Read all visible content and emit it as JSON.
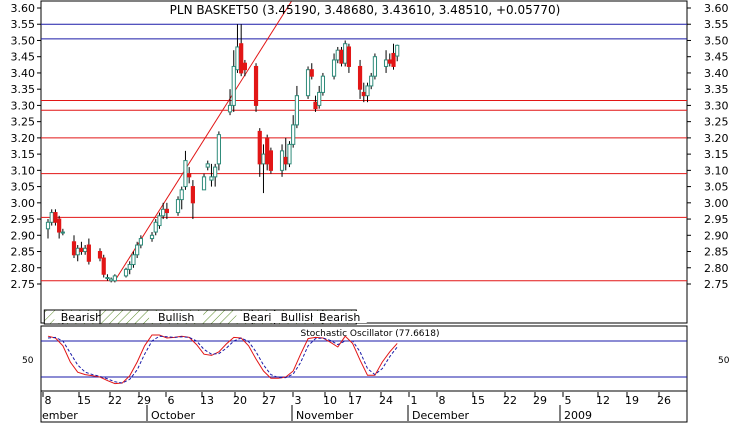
{
  "title": "PLN BASKET50 (3.45190, 3.48680, 3.43610, 3.48510, +0.05770)",
  "colors": {
    "up_candle": "#2e8b7a",
    "down_candle": "#e21616",
    "wick": "#000000",
    "support_lines": "#e21616",
    "resistance_lines": "#1a1aa8",
    "trendline": "#e21616",
    "stoch_k": "#e21616",
    "stoch_d": "#1a1aa8",
    "zone_hatch": "#5a8a2a"
  },
  "chart_data": [
    {
      "type": "candlestick",
      "title": "PLN BASKET50 (3.45190, 3.48680, 3.43610, 3.48510, +0.05770)",
      "ylim": [
        2.7,
        3.62
      ],
      "y_ticks": [
        "3.60",
        "3.55",
        "3.50",
        "3.45",
        "3.40",
        "3.35",
        "3.30",
        "3.25",
        "3.20",
        "3.15",
        "3.10",
        "3.05",
        "3.00",
        "2.95",
        "2.90",
        "2.85",
        "2.80",
        "2.75"
      ],
      "x_tick_labels": [
        "8",
        "15",
        "22",
        "29",
        "6",
        "13",
        "20",
        "27",
        "3",
        "10",
        "17",
        "24",
        "1",
        "8",
        "15",
        "22",
        "29",
        "5",
        "12",
        "19",
        "26"
      ],
      "month_labels": [
        "ember",
        "October",
        "November",
        "December",
        "2009"
      ],
      "horizontal_lines": [
        {
          "value": 3.55,
          "color": "blue"
        },
        {
          "value": 3.505,
          "color": "blue"
        },
        {
          "value": 3.315,
          "color": "red"
        },
        {
          "value": 3.285,
          "color": "red"
        },
        {
          "value": 3.2,
          "color": "red"
        },
        {
          "value": 3.09,
          "color": "red"
        },
        {
          "value": 2.955,
          "color": "red"
        },
        {
          "value": 2.76,
          "color": "red"
        }
      ],
      "trendline": {
        "start": {
          "day": 18,
          "value": 2.76
        },
        "end": {
          "day": 65.5,
          "value": 3.62
        }
      },
      "candles": [
        {
          "day": 0,
          "open": 2.92,
          "high": 2.95,
          "low": 2.89,
          "close": 2.94
        },
        {
          "day": 1,
          "open": 2.94,
          "high": 2.98,
          "low": 2.93,
          "close": 2.97
        },
        {
          "day": 2,
          "open": 2.97,
          "high": 2.98,
          "low": 2.93,
          "close": 2.94
        },
        {
          "day": 3,
          "open": 2.95,
          "high": 2.96,
          "low": 2.89,
          "close": 2.91
        },
        {
          "day": 4,
          "open": 2.91,
          "high": 2.92,
          "low": 2.9,
          "close": 2.91
        },
        {
          "day": 7,
          "open": 2.88,
          "high": 2.9,
          "low": 2.83,
          "close": 2.84
        },
        {
          "day": 8,
          "open": 2.84,
          "high": 2.87,
          "low": 2.82,
          "close": 2.86
        },
        {
          "day": 9,
          "open": 2.86,
          "high": 2.88,
          "low": 2.84,
          "close": 2.85
        },
        {
          "day": 10,
          "open": 2.85,
          "high": 2.87,
          "low": 2.84,
          "close": 2.86
        },
        {
          "day": 11,
          "open": 2.87,
          "high": 2.89,
          "low": 2.81,
          "close": 2.82
        },
        {
          "day": 14,
          "open": 2.85,
          "high": 2.86,
          "low": 2.82,
          "close": 2.83
        },
        {
          "day": 15,
          "open": 2.83,
          "high": 2.84,
          "low": 2.77,
          "close": 2.78
        },
        {
          "day": 16,
          "open": 2.77,
          "high": 2.78,
          "low": 2.76,
          "close": 2.77
        },
        {
          "day": 17,
          "open": 2.76,
          "high": 2.77,
          "low": 2.755,
          "close": 2.765
        },
        {
          "day": 18,
          "open": 2.76,
          "high": 2.78,
          "low": 2.755,
          "close": 2.775
        },
        {
          "day": 21,
          "open": 2.775,
          "high": 2.8,
          "low": 2.77,
          "close": 2.795
        },
        {
          "day": 22,
          "open": 2.795,
          "high": 2.82,
          "low": 2.78,
          "close": 2.81
        },
        {
          "day": 23,
          "open": 2.81,
          "high": 2.85,
          "low": 2.8,
          "close": 2.84
        },
        {
          "day": 24,
          "open": 2.84,
          "high": 2.88,
          "low": 2.83,
          "close": 2.87
        },
        {
          "day": 25,
          "open": 2.87,
          "high": 2.9,
          "low": 2.86,
          "close": 2.89
        },
        {
          "day": 28,
          "open": 2.89,
          "high": 2.91,
          "low": 2.88,
          "close": 2.9
        },
        {
          "day": 29,
          "open": 2.91,
          "high": 2.95,
          "low": 2.9,
          "close": 2.94
        },
        {
          "day": 30,
          "open": 2.93,
          "high": 2.97,
          "low": 2.92,
          "close": 2.96
        },
        {
          "day": 31,
          "open": 2.96,
          "high": 3.0,
          "low": 2.95,
          "close": 2.98
        },
        {
          "day": 32,
          "open": 2.98,
          "high": 3.0,
          "low": 2.95,
          "close": 2.97
        },
        {
          "day": 35,
          "open": 2.97,
          "high": 3.02,
          "low": 2.96,
          "close": 3.01
        },
        {
          "day": 36,
          "open": 3.01,
          "high": 3.05,
          "low": 2.98,
          "close": 3.04
        },
        {
          "day": 37,
          "open": 3.05,
          "high": 3.16,
          "low": 3.04,
          "close": 3.13
        },
        {
          "day": 38,
          "open": 3.09,
          "high": 3.11,
          "low": 3.06,
          "close": 3.08
        },
        {
          "day": 39,
          "open": 3.05,
          "high": 3.07,
          "low": 2.95,
          "close": 3.0
        },
        {
          "day": 42,
          "open": 3.04,
          "high": 3.09,
          "low": 3.04,
          "close": 3.08
        },
        {
          "day": 43,
          "open": 3.11,
          "high": 3.13,
          "low": 3.1,
          "close": 3.12
        },
        {
          "day": 44,
          "open": 3.07,
          "high": 3.12,
          "low": 3.05,
          "close": 3.08
        },
        {
          "day": 45,
          "open": 3.08,
          "high": 3.12,
          "low": 3.05,
          "close": 3.11
        },
        {
          "day": 46,
          "open": 3.12,
          "high": 3.22,
          "low": 3.1,
          "close": 3.21
        },
        {
          "day": 49,
          "open": 3.28,
          "high": 3.35,
          "low": 3.27,
          "close": 3.3
        },
        {
          "day": 50,
          "open": 3.3,
          "high": 3.47,
          "low": 3.28,
          "close": 3.42
        },
        {
          "day": 51,
          "open": 3.41,
          "high": 3.55,
          "low": 3.4,
          "close": 3.48
        },
        {
          "day": 52,
          "open": 3.49,
          "high": 3.55,
          "low": 3.39,
          "close": 3.4
        },
        {
          "day": 53,
          "open": 3.43,
          "high": 3.44,
          "low": 3.39,
          "close": 3.41
        },
        {
          "day": 56,
          "open": 3.42,
          "high": 3.43,
          "low": 3.28,
          "close": 3.3
        },
        {
          "day": 57,
          "open": 3.22,
          "high": 3.23,
          "low": 3.08,
          "close": 3.12
        },
        {
          "day": 58,
          "open": 3.12,
          "high": 3.18,
          "low": 3.03,
          "close": 3.15
        },
        {
          "day": 59,
          "open": 3.2,
          "high": 3.21,
          "low": 3.1,
          "close": 3.12
        },
        {
          "day": 60,
          "open": 3.16,
          "high": 3.17,
          "low": 3.09,
          "close": 3.1
        },
        {
          "day": 63,
          "open": 3.1,
          "high": 3.18,
          "low": 3.08,
          "close": 3.16
        },
        {
          "day": 64,
          "open": 3.14,
          "high": 3.2,
          "low": 3.1,
          "close": 3.12
        },
        {
          "day": 65,
          "open": 3.12,
          "high": 3.19,
          "low": 3.11,
          "close": 3.18
        },
        {
          "day": 66,
          "open": 3.18,
          "high": 3.27,
          "low": 3.17,
          "close": 3.24
        },
        {
          "day": 67,
          "open": 3.24,
          "high": 3.36,
          "low": 3.23,
          "close": 3.33
        },
        {
          "day": 70,
          "open": 3.33,
          "high": 3.42,
          "low": 3.32,
          "close": 3.41
        },
        {
          "day": 71,
          "open": 3.41,
          "high": 3.43,
          "low": 3.38,
          "close": 3.39
        },
        {
          "day": 72,
          "open": 3.31,
          "high": 3.33,
          "low": 3.28,
          "close": 3.29
        },
        {
          "day": 73,
          "open": 3.3,
          "high": 3.36,
          "low": 3.29,
          "close": 3.34
        },
        {
          "day": 74,
          "open": 3.34,
          "high": 3.4,
          "low": 3.33,
          "close": 3.39
        },
        {
          "day": 77,
          "open": 3.39,
          "high": 3.46,
          "low": 3.38,
          "close": 3.44
        },
        {
          "day": 78,
          "open": 3.44,
          "high": 3.48,
          "low": 3.43,
          "close": 3.47
        },
        {
          "day": 79,
          "open": 3.47,
          "high": 3.48,
          "low": 3.42,
          "close": 3.43
        },
        {
          "day": 80,
          "open": 3.43,
          "high": 3.5,
          "low": 3.42,
          "close": 3.49
        },
        {
          "day": 81,
          "open": 3.48,
          "high": 3.49,
          "low": 3.4,
          "close": 3.42
        },
        {
          "day": 84,
          "open": 3.42,
          "high": 3.44,
          "low": 3.32,
          "close": 3.35
        },
        {
          "day": 85,
          "open": 3.34,
          "high": 3.37,
          "low": 3.31,
          "close": 3.33
        },
        {
          "day": 86,
          "open": 3.33,
          "high": 3.37,
          "low": 3.31,
          "close": 3.36
        },
        {
          "day": 87,
          "open": 3.36,
          "high": 3.4,
          "low": 3.35,
          "close": 3.39
        },
        {
          "day": 88,
          "open": 3.39,
          "high": 3.46,
          "low": 3.38,
          "close": 3.45
        },
        {
          "day": 91,
          "open": 3.42,
          "high": 3.47,
          "low": 3.4,
          "close": 3.44
        },
        {
          "day": 92,
          "open": 3.44,
          "high": 3.46,
          "low": 3.42,
          "close": 3.43
        },
        {
          "day": 93,
          "open": 3.46,
          "high": 3.49,
          "low": 3.41,
          "close": 3.42
        },
        {
          "day": 94,
          "open": 3.452,
          "high": 3.487,
          "low": 3.436,
          "close": 3.485
        }
      ],
      "market_zones": [
        {
          "label": "",
          "start_day": -1,
          "end_day": 4
        },
        {
          "label": "Bearish",
          "start_day": 4,
          "end_day": 14
        },
        {
          "label": "Bullish",
          "start_day": 14,
          "end_day": 55
        },
        {
          "label": "Bearish",
          "start_day": 55,
          "end_day": 61
        },
        {
          "label": "Bullish",
          "start_day": 61,
          "end_day": 74
        },
        {
          "label": "Bearish",
          "start_day": 74,
          "end_day": 83
        }
      ]
    },
    {
      "type": "line",
      "title": "Stochastic Oscillator (77.6618)",
      "ylim": [
        0,
        100
      ],
      "y_ticks": [
        "50"
      ],
      "levels": [
        80,
        20
      ],
      "series": [
        {
          "key": "k",
          "x": [
            0,
            2,
            4,
            6,
            8,
            10,
            12,
            14,
            16,
            18,
            20,
            22,
            24,
            26,
            28,
            30,
            32,
            34,
            36,
            38,
            40,
            42,
            44,
            46,
            48,
            50,
            52,
            54,
            56,
            58,
            60,
            62,
            64,
            66,
            68,
            70,
            72,
            74,
            76,
            78,
            80,
            82,
            84,
            86,
            88,
            90,
            92,
            94
          ],
          "values": [
            88,
            85,
            72,
            45,
            28,
            24,
            22,
            20,
            14,
            9,
            10,
            22,
            45,
            72,
            90,
            90,
            85,
            86,
            88,
            86,
            74,
            58,
            56,
            62,
            75,
            86,
            85,
            72,
            50,
            30,
            18,
            18,
            20,
            30,
            58,
            84,
            86,
            85,
            78,
            70,
            88,
            76,
            48,
            23,
            23,
            45,
            62,
            76
          ]
        },
        {
          "key": "d",
          "x": [
            0,
            2,
            4,
            6,
            8,
            10,
            12,
            14,
            16,
            18,
            20,
            22,
            24,
            26,
            28,
            30,
            32,
            34,
            36,
            38,
            40,
            42,
            44,
            46,
            48,
            50,
            52,
            54,
            56,
            58,
            60,
            62,
            64,
            66,
            68,
            70,
            72,
            74,
            76,
            78,
            80,
            82,
            84,
            86,
            88,
            90,
            92,
            94
          ],
          "values": [
            85,
            86,
            80,
            60,
            40,
            28,
            24,
            21,
            17,
            12,
            10,
            16,
            32,
            58,
            80,
            88,
            87,
            86,
            87,
            86,
            80,
            66,
            58,
            59,
            68,
            80,
            85,
            79,
            62,
            40,
            24,
            19,
            19,
            25,
            44,
            72,
            84,
            85,
            81,
            74,
            80,
            80,
            62,
            34,
            24,
            34,
            54,
            70
          ]
        }
      ]
    }
  ]
}
